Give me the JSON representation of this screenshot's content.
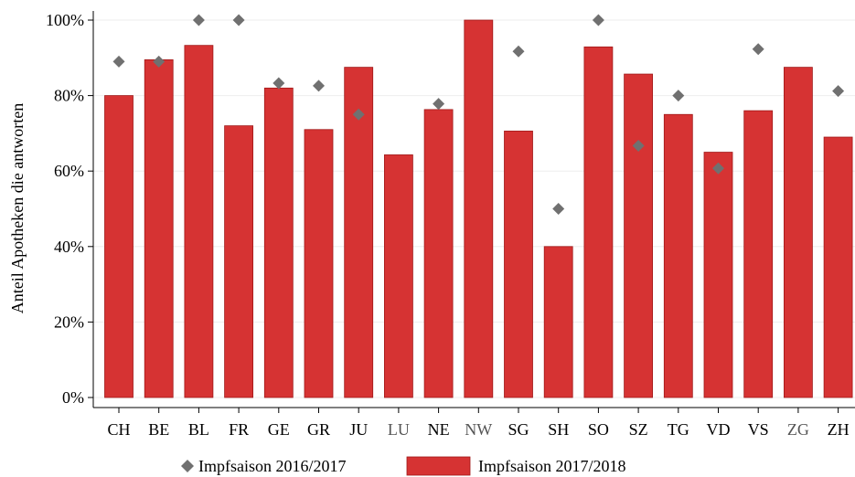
{
  "chart_data": {
    "type": "bar",
    "ylabel": "Anteil Apotheken die antworten",
    "xlabel": "",
    "ylim": [
      0,
      1
    ],
    "yticks": [
      {
        "value": 0,
        "label": "0%"
      },
      {
        "value": 0.2,
        "label": "20%"
      },
      {
        "value": 0.4,
        "label": "40%"
      },
      {
        "value": 0.6,
        "label": "60%"
      },
      {
        "value": 0.8,
        "label": "80%"
      },
      {
        "value": 1.0,
        "label": "100%"
      }
    ],
    "grid": true,
    "legend_position": "bottom",
    "categories": [
      "CH",
      "BE",
      "BL",
      "FR",
      "GE",
      "GR",
      "JU",
      "LU",
      "NE",
      "NW",
      "SG",
      "SH",
      "SO",
      "SZ",
      "TG",
      "VD",
      "VS",
      "ZG",
      "ZH"
    ],
    "category_colors": [
      "#000000",
      "#000000",
      "#000000",
      "#000000",
      "#000000",
      "#000000",
      "#000000",
      "#555555",
      "#000000",
      "#555555",
      "#000000",
      "#000000",
      "#000000",
      "#000000",
      "#000000",
      "#000000",
      "#000000",
      "#555555",
      "#000000"
    ],
    "series": [
      {
        "name": "Impfsaison 2017/2018",
        "kind": "bar",
        "color": "#d63333",
        "values": [
          0.8,
          0.895,
          0.933,
          0.72,
          0.82,
          0.71,
          0.875,
          0.643,
          0.763,
          1.0,
          0.706,
          0.4,
          0.929,
          0.857,
          0.75,
          0.65,
          0.76,
          0.875,
          0.69
        ]
      },
      {
        "name": "Impfsaison 2016/2017",
        "kind": "marker",
        "marker": "diamond",
        "color": "#707070",
        "values": [
          0.89,
          0.89,
          1.0,
          1.0,
          0.833,
          0.826,
          0.75,
          null,
          0.778,
          null,
          0.917,
          0.5,
          1.0,
          0.667,
          0.8,
          0.607,
          0.923,
          null,
          0.812
        ]
      }
    ]
  },
  "legend": [
    {
      "label": "Impfsaison 2016/2017",
      "marker": "diamond",
      "color": "#707070"
    },
    {
      "label": "Impfsaison 2017/2018",
      "marker": "rect",
      "color": "#d63333"
    }
  ]
}
